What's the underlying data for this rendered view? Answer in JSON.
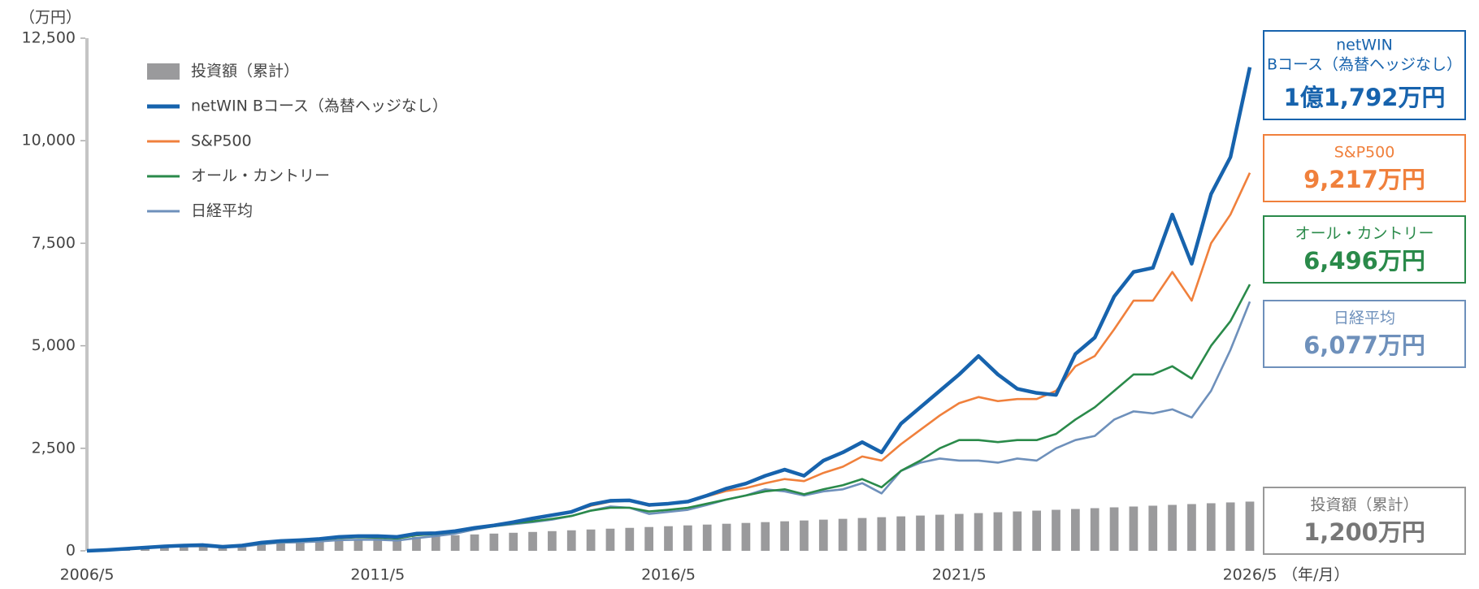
{
  "chart_data": {
    "type": "line",
    "y_unit": "（万円）",
    "x_unit": "（年/月）",
    "categories": [
      "2006/5",
      null,
      null,
      null,
      null,
      null,
      null,
      null,
      null,
      null,
      null,
      null,
      null,
      null,
      null,
      "2011/5",
      null,
      null,
      null,
      null,
      null,
      null,
      null,
      null,
      null,
      null,
      null,
      null,
      null,
      null,
      "2016/5",
      null,
      null,
      null,
      null,
      null,
      null,
      null,
      null,
      null,
      null,
      null,
      null,
      null,
      null,
      "2021/5",
      null,
      null,
      null,
      null,
      null,
      null,
      null,
      null,
      null,
      null,
      null,
      null,
      null,
      null,
      "2026/5"
    ],
    "ylim": [
      0,
      12500
    ],
    "yticks": [
      0,
      {
        "value": 2500,
        "label": "2,500"
      },
      {
        "value": 5000,
        "label": "5,000"
      },
      {
        "value": 7500,
        "label": "7,500"
      },
      {
        "value": 10000,
        "label": "10,000"
      },
      {
        "value": 12500,
        "label": "12,500"
      }
    ],
    "grid": false,
    "legend": "upper left",
    "series": [
      {
        "name": "投資額（累計）",
        "type": "bar",
        "color": "#9a9a9c",
        "end_label": "1,200万円",
        "values": [
          0,
          20,
          40,
          60,
          80,
          100,
          120,
          140,
          160,
          180,
          200,
          220,
          240,
          260,
          280,
          300,
          320,
          340,
          360,
          380,
          400,
          420,
          440,
          460,
          480,
          500,
          520,
          540,
          560,
          580,
          600,
          620,
          640,
          660,
          680,
          700,
          720,
          740,
          760,
          780,
          800,
          820,
          840,
          860,
          880,
          900,
          920,
          940,
          960,
          980,
          1000,
          1020,
          1040,
          1060,
          1080,
          1100,
          1120,
          1140,
          1160,
          1180,
          1200
        ]
      },
      {
        "name": "netWIN Bコース（為替ヘッジなし）",
        "box_label_lines": [
          "netWIN",
          "Bコース（為替ヘッジなし）"
        ],
        "color": "#1763ad",
        "end_label": "1億1,792万円",
        "values": [
          0,
          20,
          50,
          80,
          110,
          130,
          140,
          100,
          130,
          200,
          240,
          260,
          290,
          340,
          360,
          360,
          340,
          420,
          430,
          480,
          560,
          620,
          700,
          790,
          870,
          950,
          1130,
          1220,
          1230,
          1120,
          1150,
          1200,
          1350,
          1520,
          1640,
          1830,
          1980,
          1830,
          2200,
          2400,
          2650,
          2400,
          3100,
          3500,
          3900,
          4300,
          4750,
          4300,
          3950,
          3850,
          3800,
          4800,
          5200,
          6200,
          6800,
          6900,
          8200,
          7000,
          8700,
          9600,
          11792
        ]
      },
      {
        "name": "S&P500",
        "color": "#f0803c",
        "end_label": "9,217万円",
        "values": [
          0,
          20,
          50,
          80,
          100,
          120,
          120,
          90,
          120,
          190,
          230,
          250,
          280,
          320,
          340,
          340,
          320,
          400,
          420,
          470,
          550,
          610,
          690,
          780,
          860,
          940,
          1100,
          1200,
          1220,
          1100,
          1150,
          1200,
          1330,
          1460,
          1530,
          1650,
          1750,
          1700,
          1900,
          2050,
          2300,
          2200,
          2600,
          2950,
          3300,
          3600,
          3750,
          3650,
          3700,
          3700,
          3900,
          4500,
          4750,
          5400,
          6100,
          6100,
          6800,
          6100,
          7500,
          8200,
          9217
        ]
      },
      {
        "name": "オール・カントリー",
        "color": "#2a8a4a",
        "end_label": "6,496万円",
        "values": [
          0,
          20,
          50,
          80,
          100,
          120,
          120,
          90,
          120,
          180,
          220,
          240,
          270,
          310,
          330,
          320,
          300,
          380,
          410,
          460,
          540,
          600,
          670,
          720,
          780,
          850,
          980,
          1050,
          1050,
          960,
          1000,
          1050,
          1150,
          1250,
          1350,
          1450,
          1500,
          1380,
          1500,
          1600,
          1750,
          1550,
          1950,
          2200,
          2500,
          2700,
          2700,
          2650,
          2700,
          2700,
          2850,
          3200,
          3500,
          3900,
          4300,
          4300,
          4500,
          4200,
          5000,
          5600,
          6496
        ]
      },
      {
        "name": "日経平均",
        "color": "#6e90bb",
        "end_label": "6,077万円",
        "values": [
          0,
          20,
          50,
          80,
          100,
          110,
          110,
          80,
          100,
          160,
          200,
          210,
          230,
          260,
          270,
          270,
          250,
          310,
          360,
          420,
          520,
          600,
          650,
          700,
          760,
          850,
          980,
          1080,
          1050,
          900,
          950,
          1000,
          1120,
          1250,
          1350,
          1500,
          1450,
          1350,
          1450,
          1500,
          1650,
          1400,
          1950,
          2150,
          2250,
          2200,
          2200,
          2150,
          2250,
          2200,
          2500,
          2700,
          2800,
          3200,
          3400,
          3350,
          3450,
          3250,
          3900,
          4900,
          6077
        ]
      }
    ]
  }
}
